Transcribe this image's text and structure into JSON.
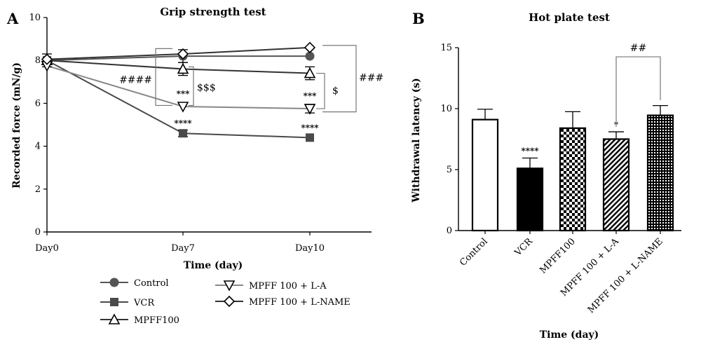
{
  "panel_a": {
    "letter": "A",
    "chart_data": {
      "type": "line",
      "title": "Grip strength test",
      "xlabel": "Time (day)",
      "ylabel": "Recorded force (mN/g)",
      "categories": [
        "Day0",
        "Day7",
        "Day10"
      ],
      "ylim": [
        0,
        10
      ],
      "yticks": [
        0,
        2,
        4,
        6,
        8,
        10
      ],
      "series": [
        {
          "name": "Control",
          "values": [
            8.0,
            8.2,
            8.2
          ],
          "errors": [
            0.3,
            0.3,
            0
          ],
          "marker": "circle",
          "color": "#555555"
        },
        {
          "name": "VCR",
          "values": [
            8.0,
            4.6,
            4.4
          ],
          "errors": [
            0,
            0.15,
            0
          ],
          "marker": "square",
          "color": "#4a4a4a",
          "stars": [
            "",
            "****",
            "****"
          ]
        },
        {
          "name": "MPFF100",
          "values": [
            8.0,
            7.6,
            7.4
          ],
          "errors": [
            0,
            0.3,
            0.3
          ],
          "marker": "triangle-up",
          "color": "#333333"
        },
        {
          "name": "MPFF 100 + L-A",
          "values": [
            7.75,
            5.85,
            5.75
          ],
          "errors": [
            0,
            0,
            0.2
          ],
          "marker": "triangle-down",
          "color": "#888888",
          "stars": [
            "",
            "***",
            "***"
          ]
        },
        {
          "name": "MPFF 100 + L-NAME",
          "values": [
            8.05,
            8.3,
            8.6
          ],
          "errors": [
            0,
            0,
            0
          ],
          "marker": "diamond",
          "color": "#333333"
        }
      ],
      "annotations": [
        "####",
        "$$$",
        "$",
        "###"
      ]
    }
  },
  "panel_b": {
    "letter": "B",
    "chart_data": {
      "type": "bar",
      "title": "Hot plate test",
      "xlabel": "Time (day)",
      "ylabel": "Withdrawal latency (s)",
      "categories": [
        "Control",
        "VCR",
        "MPFF100",
        "MPFF 100 + L-A",
        "MPFF 100 + L-NAME"
      ],
      "values": [
        9.1,
        5.1,
        8.4,
        7.5,
        9.45
      ],
      "errors": [
        0.85,
        0.85,
        1.35,
        0.6,
        0.8
      ],
      "patterns": [
        "empty",
        "solid",
        "checker",
        "diagonal",
        "grid"
      ],
      "stars": [
        "",
        "****",
        "",
        "*",
        ""
      ],
      "ylim": [
        0,
        15
      ],
      "yticks": [
        0,
        5,
        10,
        15
      ],
      "annotations": [
        "##"
      ]
    }
  }
}
